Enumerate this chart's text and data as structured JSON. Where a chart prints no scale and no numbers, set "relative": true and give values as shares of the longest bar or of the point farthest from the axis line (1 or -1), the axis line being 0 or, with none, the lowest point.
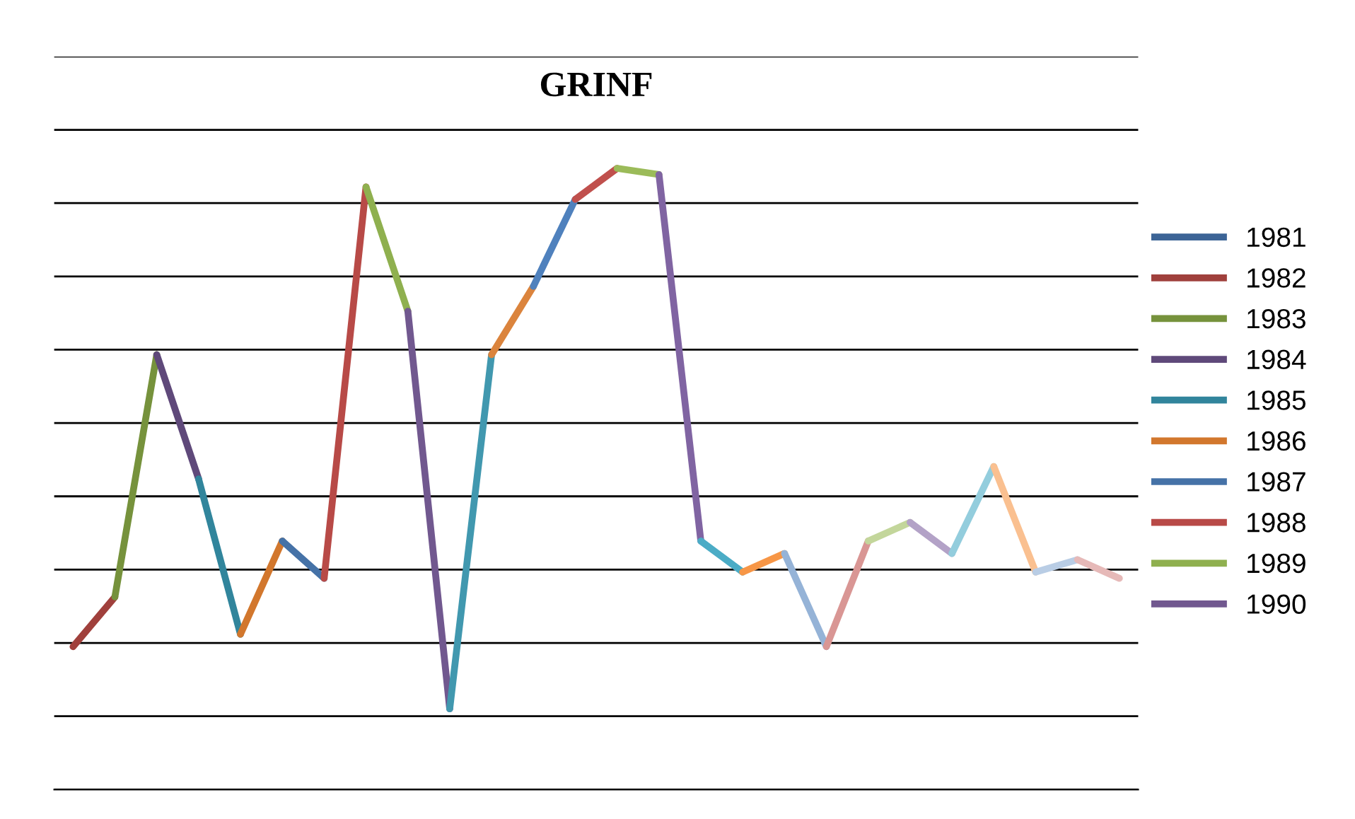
{
  "chart_data": {
    "type": "line",
    "title": "GRINF",
    "relative": true,
    "grid": "y",
    "legend": "right",
    "tick_labels": false,
    "line_style": "solid",
    "marker": "none",
    "categories": [
      null,
      null,
      null,
      null,
      null,
      null,
      null,
      null,
      null,
      null,
      null,
      null,
      null,
      null,
      null,
      null,
      null,
      null,
      null,
      null,
      null,
      null,
      null,
      null,
      null,
      null
    ],
    "series": [
      {
        "name": "1981",
        "color": "#3c6496",
        "values": [
          null,
          null,
          null,
          null,
          null,
          null,
          null,
          null,
          null,
          null,
          null,
          null,
          null,
          null,
          null,
          null,
          null,
          null,
          null,
          null,
          null,
          null,
          null,
          null,
          null,
          null
        ]
      },
      {
        "name": "1982",
        "color": "#a0403c",
        "values": [
          0.23,
          0.31,
          null,
          null,
          null,
          null,
          null,
          null,
          null,
          null,
          null,
          null,
          null,
          null,
          null,
          null,
          null,
          null,
          null,
          null,
          null,
          null,
          null,
          null,
          null,
          null
        ]
      },
      {
        "name": "1983",
        "color": "#76923c",
        "values": [
          null,
          0.31,
          0.7,
          null,
          null,
          null,
          null,
          null,
          null,
          null,
          null,
          null,
          null,
          null,
          null,
          null,
          null,
          null,
          null,
          null,
          null,
          null,
          null,
          null,
          null,
          null
        ]
      },
      {
        "name": "1984",
        "color": "#5f497a",
        "values": [
          null,
          null,
          0.7,
          0.5,
          null,
          null,
          null,
          null,
          null,
          null,
          null,
          null,
          null,
          null,
          null,
          null,
          null,
          null,
          null,
          null,
          null,
          null,
          null,
          null,
          null,
          null
        ]
      },
      {
        "name": "1985",
        "color": "#31859c",
        "values": [
          null,
          null,
          null,
          0.5,
          0.25,
          null,
          null,
          null,
          null,
          null,
          null,
          null,
          null,
          null,
          null,
          null,
          null,
          null,
          null,
          null,
          null,
          null,
          null,
          null,
          null,
          null
        ]
      },
      {
        "name": "1986",
        "color": "#d2772d",
        "values": [
          null,
          null,
          null,
          null,
          0.25,
          0.4,
          null,
          null,
          null,
          null,
          null,
          null,
          null,
          null,
          null,
          null,
          null,
          null,
          null,
          null,
          null,
          null,
          null,
          null,
          null,
          null
        ]
      },
      {
        "name": "1987",
        "color": "#4572a7",
        "values": [
          null,
          null,
          null,
          null,
          null,
          0.4,
          0.34,
          null,
          null,
          null,
          null,
          null,
          null,
          null,
          null,
          null,
          null,
          null,
          null,
          null,
          null,
          null,
          null,
          null,
          null,
          null
        ]
      },
      {
        "name": "1988",
        "color": "#b84a47",
        "values": [
          null,
          null,
          null,
          null,
          null,
          null,
          0.34,
          0.97,
          null,
          null,
          null,
          null,
          null,
          null,
          null,
          null,
          null,
          null,
          null,
          null,
          null,
          null,
          null,
          null,
          null,
          null
        ]
      },
      {
        "name": "1989",
        "color": "#8fb04f",
        "values": [
          null,
          null,
          null,
          null,
          null,
          null,
          null,
          0.97,
          0.77,
          null,
          null,
          null,
          null,
          null,
          null,
          null,
          null,
          null,
          null,
          null,
          null,
          null,
          null,
          null,
          null,
          null
        ]
      },
      {
        "name": "1990",
        "color": "#71588f",
        "values": [
          null,
          null,
          null,
          null,
          null,
          null,
          null,
          null,
          0.77,
          0.13,
          null,
          null,
          null,
          null,
          null,
          null,
          null,
          null,
          null,
          null,
          null,
          null,
          null,
          null,
          null,
          null
        ]
      },
      {
        "color": "#4198af",
        "values": [
          null,
          null,
          null,
          null,
          null,
          null,
          null,
          null,
          null,
          0.13,
          0.7,
          null,
          null,
          null,
          null,
          null,
          null,
          null,
          null,
          null,
          null,
          null,
          null,
          null,
          null,
          null
        ]
      },
      {
        "color": "#db843d",
        "values": [
          null,
          null,
          null,
          null,
          null,
          null,
          null,
          null,
          null,
          null,
          0.7,
          0.81,
          null,
          null,
          null,
          null,
          null,
          null,
          null,
          null,
          null,
          null,
          null,
          null,
          null,
          null
        ]
      },
      {
        "color": "#4f81bd",
        "values": [
          null,
          null,
          null,
          null,
          null,
          null,
          null,
          null,
          null,
          null,
          null,
          0.81,
          0.95,
          null,
          null,
          null,
          null,
          null,
          null,
          null,
          null,
          null,
          null,
          null,
          null,
          null
        ]
      },
      {
        "color": "#c0504d",
        "values": [
          null,
          null,
          null,
          null,
          null,
          null,
          null,
          null,
          null,
          null,
          null,
          null,
          0.95,
          1.0,
          null,
          null,
          null,
          null,
          null,
          null,
          null,
          null,
          null,
          null,
          null,
          null
        ]
      },
      {
        "color": "#9bbb59",
        "values": [
          null,
          null,
          null,
          null,
          null,
          null,
          null,
          null,
          null,
          null,
          null,
          null,
          null,
          1.0,
          0.99,
          null,
          null,
          null,
          null,
          null,
          null,
          null,
          null,
          null,
          null,
          null
        ]
      },
      {
        "color": "#8064a2",
        "values": [
          null,
          null,
          null,
          null,
          null,
          null,
          null,
          null,
          null,
          null,
          null,
          null,
          null,
          null,
          0.99,
          0.4,
          null,
          null,
          null,
          null,
          null,
          null,
          null,
          null,
          null,
          null
        ]
      },
      {
        "color": "#4bacc6",
        "values": [
          null,
          null,
          null,
          null,
          null,
          null,
          null,
          null,
          null,
          null,
          null,
          null,
          null,
          null,
          null,
          0.4,
          0.35,
          null,
          null,
          null,
          null,
          null,
          null,
          null,
          null,
          null
        ]
      },
      {
        "color": "#f79646",
        "values": [
          null,
          null,
          null,
          null,
          null,
          null,
          null,
          null,
          null,
          null,
          null,
          null,
          null,
          null,
          null,
          null,
          0.35,
          0.38,
          null,
          null,
          null,
          null,
          null,
          null,
          null,
          null
        ]
      },
      {
        "color": "#95b3d7",
        "values": [
          null,
          null,
          null,
          null,
          null,
          null,
          null,
          null,
          null,
          null,
          null,
          null,
          null,
          null,
          null,
          null,
          null,
          0.38,
          0.23,
          null,
          null,
          null,
          null,
          null,
          null,
          null
        ]
      },
      {
        "color": "#d99694",
        "values": [
          null,
          null,
          null,
          null,
          null,
          null,
          null,
          null,
          null,
          null,
          null,
          null,
          null,
          null,
          null,
          null,
          null,
          null,
          0.23,
          0.4,
          null,
          null,
          null,
          null,
          null,
          null
        ]
      },
      {
        "color": "#c3d69b",
        "values": [
          null,
          null,
          null,
          null,
          null,
          null,
          null,
          null,
          null,
          null,
          null,
          null,
          null,
          null,
          null,
          null,
          null,
          null,
          null,
          0.4,
          0.43,
          null,
          null,
          null,
          null,
          null
        ]
      },
      {
        "color": "#b3a2c7",
        "values": [
          null,
          null,
          null,
          null,
          null,
          null,
          null,
          null,
          null,
          null,
          null,
          null,
          null,
          null,
          null,
          null,
          null,
          null,
          null,
          null,
          0.43,
          0.38,
          null,
          null,
          null,
          null
        ]
      },
      {
        "color": "#93cddd",
        "values": [
          null,
          null,
          null,
          null,
          null,
          null,
          null,
          null,
          null,
          null,
          null,
          null,
          null,
          null,
          null,
          null,
          null,
          null,
          null,
          null,
          null,
          0.38,
          0.52,
          null,
          null,
          null
        ]
      },
      {
        "color": "#fac090",
        "values": [
          null,
          null,
          null,
          null,
          null,
          null,
          null,
          null,
          null,
          null,
          null,
          null,
          null,
          null,
          null,
          null,
          null,
          null,
          null,
          null,
          null,
          null,
          0.52,
          0.35,
          null,
          null
        ]
      },
      {
        "color": "#b9cde5",
        "values": [
          null,
          null,
          null,
          null,
          null,
          null,
          null,
          null,
          null,
          null,
          null,
          null,
          null,
          null,
          null,
          null,
          null,
          null,
          null,
          null,
          null,
          null,
          null,
          0.35,
          0.37,
          null
        ]
      },
      {
        "color": "#e6b9b8",
        "values": [
          null,
          null,
          null,
          null,
          null,
          null,
          null,
          null,
          null,
          null,
          null,
          null,
          null,
          null,
          null,
          null,
          null,
          null,
          null,
          null,
          null,
          null,
          null,
          null,
          0.37,
          0.34
        ]
      }
    ]
  }
}
